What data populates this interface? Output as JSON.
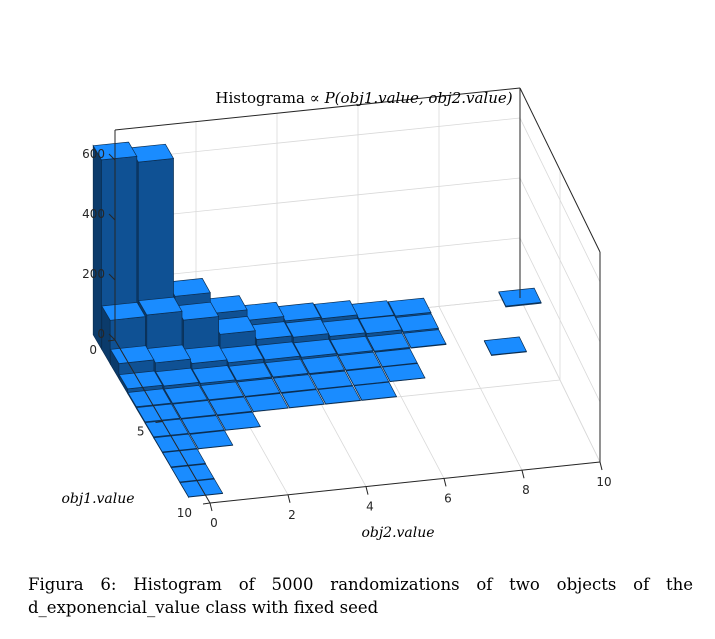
{
  "chart_data": {
    "type": "bar3d",
    "title_prefix": "Histograma ∝ ",
    "title_math": "P(obj1.value, obj2.value)",
    "xlabel": "obj2.value",
    "ylabel": "obj1.value",
    "zlim": [
      0,
      700
    ],
    "xlim": [
      0,
      10
    ],
    "ylim": [
      0,
      10
    ],
    "x_ticks": [
      "0",
      "2",
      "4",
      "6",
      "8",
      "10"
    ],
    "y_ticks": [
      "0",
      "5",
      "10"
    ],
    "z_ticks": [
      "0",
      "200",
      "400",
      "600"
    ],
    "bar_color": "#1a8cff",
    "z_values": [
      [
        630,
        610,
        150,
        80,
        45,
        30,
        25,
        12,
        8,
        0,
        0,
        3
      ],
      [
        145,
        150,
        120,
        60,
        30,
        25,
        15,
        12,
        5,
        0,
        0,
        0
      ],
      [
        50,
        40,
        25,
        15,
        12,
        8,
        5,
        3,
        2,
        0,
        0,
        0
      ],
      [
        15,
        12,
        8,
        5,
        4,
        3,
        2,
        1,
        0,
        0,
        2,
        0
      ],
      [
        5,
        4,
        3,
        2,
        2,
        1,
        1,
        1,
        0,
        0,
        0,
        0
      ],
      [
        4,
        3,
        2,
        1,
        1,
        1,
        1,
        0,
        0,
        0,
        0,
        0
      ],
      [
        3,
        2,
        1,
        0,
        0,
        0,
        0,
        0,
        0,
        0,
        0,
        0
      ],
      [
        2,
        1,
        0,
        0,
        0,
        0,
        0,
        0,
        0,
        0,
        0,
        0
      ],
      [
        2,
        0,
        0,
        0,
        0,
        0,
        0,
        0,
        0,
        0,
        0,
        0
      ],
      [
        1,
        0,
        0,
        0,
        0,
        0,
        0,
        0,
        0,
        0,
        0,
        0
      ],
      [
        1,
        0,
        0,
        0,
        0,
        0,
        0,
        0,
        0,
        0,
        0,
        0
      ],
      [
        0,
        0,
        0,
        0,
        0,
        0,
        0,
        0,
        0,
        0,
        0,
        0
      ]
    ]
  },
  "caption": {
    "label": "Figura 6:",
    "text": "Histogram of 5000 randomizations of two objects of the d_exponencial_value class with fixed seed"
  }
}
